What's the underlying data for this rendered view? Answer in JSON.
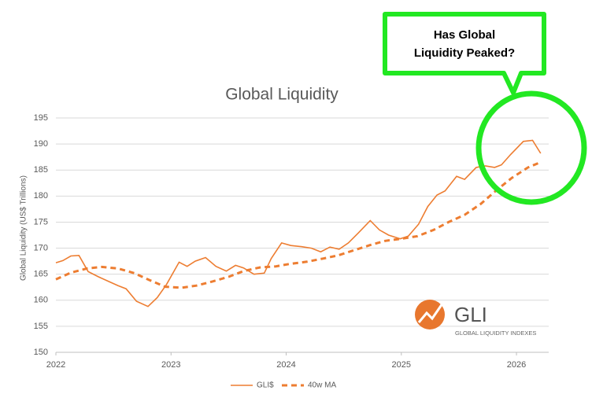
{
  "chart_data": {
    "type": "line",
    "title": "Global Liquidity",
    "y_label": "Global Liquidity (US$ Trillions)",
    "annotation": [
      "Has Global",
      "Liquidity Peaked?"
    ],
    "logo": {
      "name": "GLI",
      "subtitle": "GLOBAL LIQUIDITY INDEXES"
    },
    "xlim": [
      2022,
      2026.28
    ],
    "xticks": [
      2022,
      2023,
      2024,
      2025,
      2026
    ],
    "ylim": [
      150,
      195
    ],
    "yticks": [
      150,
      155,
      160,
      165,
      170,
      175,
      180,
      185,
      190,
      195
    ],
    "grid": true,
    "series": [
      {
        "name": "GLI$",
        "color": "#ed7d31",
        "dashed": false,
        "x": [
          2022.0,
          2022.06,
          2022.13,
          2022.2,
          2022.28,
          2022.37,
          2022.47,
          2022.54,
          2022.61,
          2022.7,
          2022.8,
          2022.88,
          2022.96,
          2023.07,
          2023.14,
          2023.21,
          2023.3,
          2023.39,
          2023.48,
          2023.56,
          2023.63,
          2023.72,
          2023.81,
          2023.87,
          2023.96,
          2024.04,
          2024.13,
          2024.22,
          2024.3,
          2024.38,
          2024.46,
          2024.54,
          2024.63,
          2024.73,
          2024.81,
          2024.89,
          2024.99,
          2025.06,
          2025.15,
          2025.23,
          2025.31,
          2025.38,
          2025.48,
          2025.55,
          2025.65,
          2025.73,
          2025.81,
          2025.87,
          2025.95,
          2026.06,
          2026.14,
          2026.21
        ],
        "values": [
          167.2,
          167.6,
          168.5,
          168.6,
          165.5,
          164.5,
          163.5,
          162.8,
          162.2,
          159.8,
          158.8,
          160.5,
          163.0,
          167.3,
          166.5,
          167.5,
          168.2,
          166.5,
          165.6,
          166.7,
          166.2,
          165.0,
          165.2,
          168.0,
          171.0,
          170.5,
          170.3,
          170.0,
          169.3,
          170.2,
          169.8,
          171.0,
          173.0,
          175.3,
          173.5,
          172.5,
          171.8,
          172.3,
          174.6,
          178.0,
          180.2,
          181.0,
          183.8,
          183.2,
          185.5,
          185.8,
          185.5,
          186.0,
          188.0,
          190.5,
          190.7,
          188.2
        ]
      },
      {
        "name": "40w MA",
        "color": "#ed7d31",
        "dashed": true,
        "x": [
          2022.0,
          2022.13,
          2022.27,
          2022.4,
          2022.54,
          2022.68,
          2022.81,
          2022.95,
          2023.09,
          2023.22,
          2023.36,
          2023.5,
          2023.63,
          2023.77,
          2023.91,
          2024.04,
          2024.18,
          2024.32,
          2024.45,
          2024.59,
          2024.73,
          2024.86,
          2025.0,
          2025.14,
          2025.28,
          2025.41,
          2025.55,
          2025.69,
          2025.82,
          2025.96,
          2026.1,
          2026.21
        ],
        "values": [
          164.0,
          165.3,
          166.1,
          166.4,
          166.1,
          165.2,
          163.9,
          162.6,
          162.4,
          162.8,
          163.6,
          164.5,
          165.6,
          166.3,
          166.5,
          167.0,
          167.4,
          168.0,
          168.6,
          169.6,
          170.6,
          171.4,
          171.8,
          172.3,
          173.5,
          175.0,
          176.4,
          178.5,
          181.0,
          183.5,
          185.5,
          186.5
        ]
      }
    ]
  }
}
